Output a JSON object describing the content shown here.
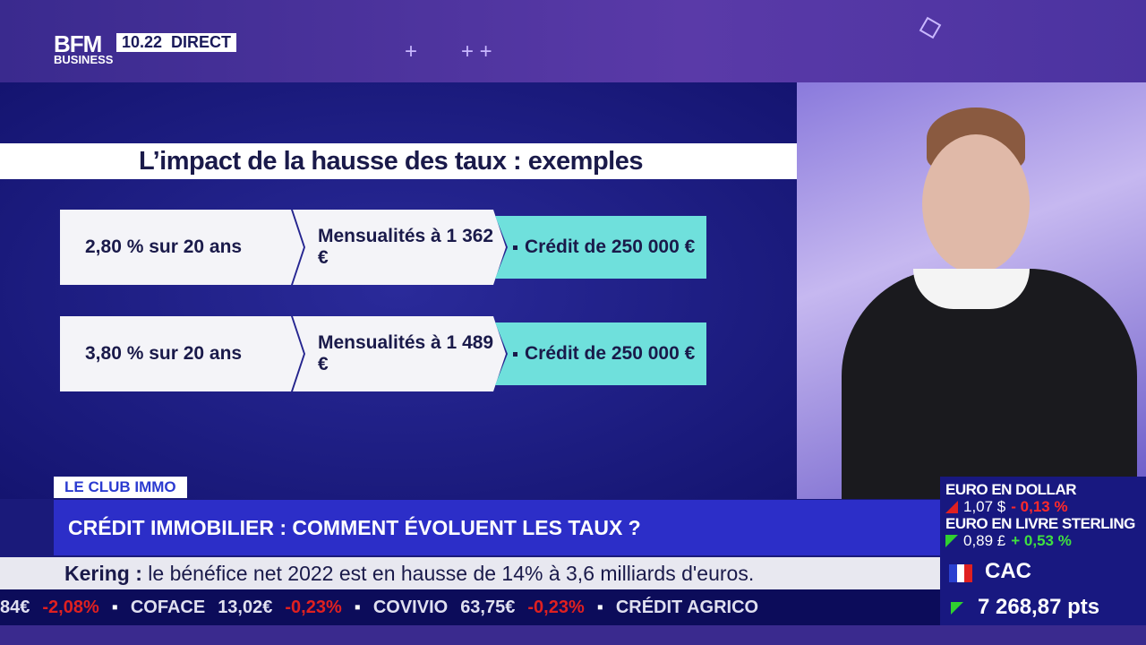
{
  "channel": {
    "logo": "BFM",
    "logo_sub": "BUSINESS",
    "time": "10.22",
    "live": "DIRECT"
  },
  "slide": {
    "title": "L’impact de la hausse des taux : exemples",
    "rows": [
      {
        "rate": "2,80 % sur 20 ans",
        "monthly": "Mensualités à 1 362 €",
        "credit": "Crédit de 250 000 €"
      },
      {
        "rate": "3,80 % sur 20 ans",
        "monthly": "Mensualités à 1 489 €",
        "credit": "Crédit de 250 000 €"
      }
    ]
  },
  "program_tag": "LE CLUB IMMO",
  "headline": "CRÉDIT IMMOBILIER : COMMENT ÉVOLUENT LES TAUX ?",
  "news": {
    "company": "Kering :",
    "text": "le bénéfice net 2022 est en hausse de 14% à 3,6 milliards d'euros."
  },
  "ticker": [
    {
      "name": "",
      "price": "84€",
      "change": "-2,08%"
    },
    {
      "name": "COFACE",
      "price": "13,02€",
      "change": "-0,23%"
    },
    {
      "name": "COVIVIO",
      "price": "63,75€",
      "change": "-0,23%"
    },
    {
      "name": "CRÉDIT AGRICO",
      "price": "",
      "change": ""
    }
  ],
  "markets": {
    "eurusd": {
      "label": "EURO EN DOLLAR",
      "value": "1,07 $",
      "change": "- 0,13 %",
      "direction": "down"
    },
    "eurgbp": {
      "label": "EURO EN LIVRE STERLING",
      "value": "0,89 £",
      "change": "+ 0,53 %",
      "direction": "up"
    },
    "cac": {
      "label": "CAC",
      "value": "7 268,87 pts",
      "direction": "up"
    }
  },
  "colors": {
    "accent": "#2c2ec8",
    "highlight": "#6fe0dc",
    "negative": "#e02020",
    "positive": "#30d030"
  }
}
